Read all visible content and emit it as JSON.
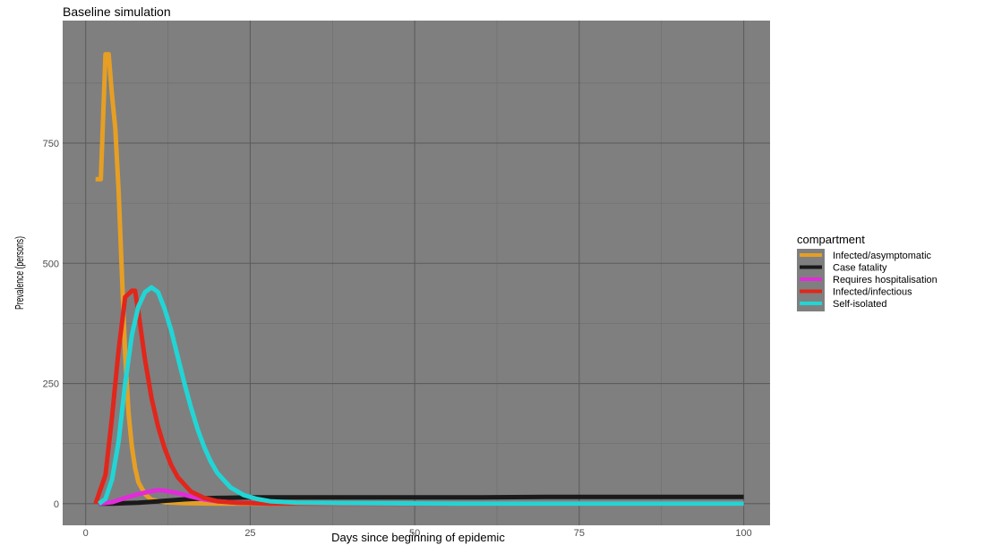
{
  "chart_data": {
    "type": "line",
    "title": "Baseline simulation",
    "xlabel": "Days since beginning of epidemic",
    "ylabel": "Prevalence (persons)",
    "xlim": [
      -3.5,
      104
    ],
    "ylim": [
      -45,
      1005
    ],
    "x_ticks": [
      0,
      25,
      50,
      75,
      100
    ],
    "y_ticks": [
      0,
      250,
      500,
      750
    ],
    "grid": true,
    "legend_title": "compartment",
    "legend_position": "right",
    "background": "#7f7f7f",
    "series": [
      {
        "name": "Infected/asymptomatic",
        "color": "#e69f24",
        "points": [
          [
            1.5,
            675
          ],
          [
            2.3,
            675
          ],
          [
            3,
            935
          ],
          [
            3.5,
            935
          ],
          [
            4,
            850
          ],
          [
            4.5,
            780
          ],
          [
            5,
            650
          ],
          [
            5.5,
            480
          ],
          [
            6,
            310
          ],
          [
            6.5,
            190
          ],
          [
            7,
            120
          ],
          [
            7.5,
            75
          ],
          [
            8,
            45
          ],
          [
            9,
            20
          ],
          [
            10,
            8
          ],
          [
            12,
            3
          ],
          [
            15,
            1
          ],
          [
            20,
            0
          ],
          [
            30,
            0
          ],
          [
            50,
            0
          ],
          [
            75,
            0
          ],
          [
            100,
            0
          ]
        ]
      },
      {
        "name": "Case fatality",
        "color": "#1a1a1a",
        "points": [
          [
            2,
            0
          ],
          [
            4,
            0
          ],
          [
            6,
            1
          ],
          [
            8,
            2
          ],
          [
            10,
            4
          ],
          [
            12,
            6
          ],
          [
            15,
            9
          ],
          [
            18,
            11
          ],
          [
            20,
            12
          ],
          [
            25,
            13
          ],
          [
            30,
            13
          ],
          [
            40,
            13
          ],
          [
            50,
            13
          ],
          [
            60,
            13
          ],
          [
            70,
            14
          ],
          [
            80,
            14
          ],
          [
            90,
            14
          ],
          [
            100,
            14
          ]
        ]
      },
      {
        "name": "Requires hospitalisation",
        "color": "#e22bd9",
        "points": [
          [
            2,
            0
          ],
          [
            4,
            3
          ],
          [
            6,
            12
          ],
          [
            8,
            20
          ],
          [
            10,
            26
          ],
          [
            11,
            28
          ],
          [
            12,
            27
          ],
          [
            14,
            22
          ],
          [
            16,
            15
          ],
          [
            18,
            9
          ],
          [
            20,
            5
          ],
          [
            23,
            2
          ],
          [
            27,
            1
          ],
          [
            35,
            0
          ],
          [
            50,
            0
          ],
          [
            75,
            0
          ],
          [
            100,
            0
          ]
        ]
      },
      {
        "name": "Infected/infectious",
        "color": "#e1261c",
        "points": [
          [
            1.5,
            0
          ],
          [
            3,
            60
          ],
          [
            4,
            180
          ],
          [
            5,
            320
          ],
          [
            6,
            430
          ],
          [
            7,
            443
          ],
          [
            7.5,
            443
          ],
          [
            8,
            400
          ],
          [
            9,
            300
          ],
          [
            10,
            220
          ],
          [
            11,
            160
          ],
          [
            12,
            115
          ],
          [
            13,
            80
          ],
          [
            14,
            55
          ],
          [
            16,
            25
          ],
          [
            18,
            12
          ],
          [
            20,
            5
          ],
          [
            23,
            2
          ],
          [
            28,
            0
          ],
          [
            40,
            0
          ],
          [
            60,
            0
          ],
          [
            80,
            0
          ],
          [
            100,
            0
          ]
        ]
      },
      {
        "name": "Self-isolated",
        "color": "#22d5d5",
        "points": [
          [
            2,
            0
          ],
          [
            3,
            10
          ],
          [
            4,
            50
          ],
          [
            5,
            130
          ],
          [
            6,
            250
          ],
          [
            7,
            350
          ],
          [
            8,
            410
          ],
          [
            9,
            440
          ],
          [
            10,
            450
          ],
          [
            11,
            440
          ],
          [
            12,
            405
          ],
          [
            13,
            360
          ],
          [
            14,
            305
          ],
          [
            15,
            250
          ],
          [
            16,
            200
          ],
          [
            17,
            155
          ],
          [
            18,
            118
          ],
          [
            19,
            88
          ],
          [
            20,
            64
          ],
          [
            22,
            34
          ],
          [
            24,
            18
          ],
          [
            26,
            10
          ],
          [
            28,
            5
          ],
          [
            32,
            2
          ],
          [
            40,
            1
          ],
          [
            60,
            0
          ],
          [
            80,
            0
          ],
          [
            100,
            0
          ]
        ]
      }
    ]
  }
}
